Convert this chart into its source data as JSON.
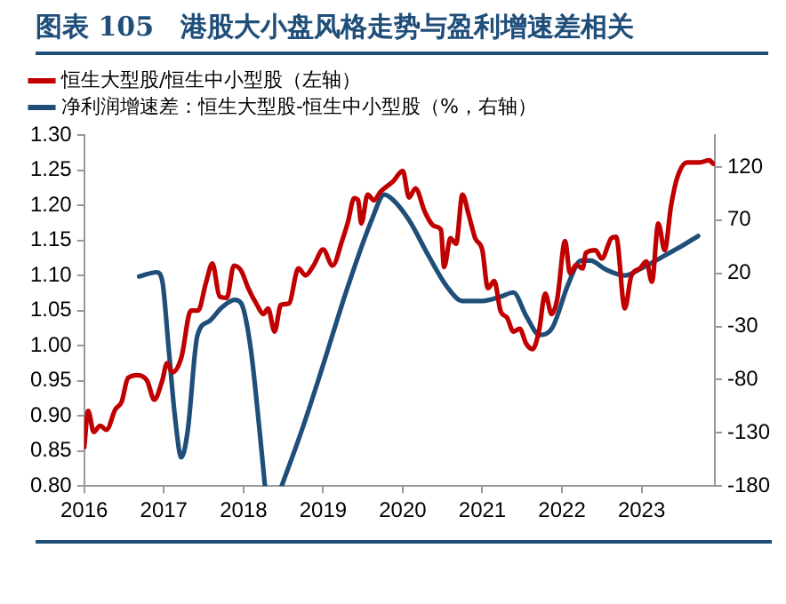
{
  "chart_data": {
    "type": "line",
    "title": "图表 105　港股大小盘风格走势与盈利增速差相关",
    "series": [
      {
        "name": "恒生大型股/恒生中小型股（左轴）",
        "color": "#c00000",
        "axis": "y",
        "x": [
          2016.0,
          2016.05,
          2016.12,
          2016.2,
          2016.28,
          2016.39,
          2016.47,
          2016.55,
          2016.67,
          2016.79,
          2016.88,
          2016.98,
          2017.04,
          2017.11,
          2017.22,
          2017.34,
          2017.43,
          2017.53,
          2017.61,
          2017.7,
          2017.79,
          2017.88,
          2017.97,
          2018.06,
          2018.17,
          2018.25,
          2018.31,
          2018.39,
          2018.47,
          2018.57,
          2018.69,
          2018.78,
          2018.88,
          2019.0,
          2019.12,
          2019.24,
          2019.31,
          2019.39,
          2019.44,
          2019.48,
          2019.56,
          2019.64,
          2019.72,
          2019.88,
          2020.0,
          2020.08,
          2020.16,
          2020.28,
          2020.4,
          2020.48,
          2020.52,
          2020.6,
          2020.67,
          2020.75,
          2020.83,
          2020.91,
          2021.0,
          2021.07,
          2021.15,
          2021.23,
          2021.31,
          2021.39,
          2021.47,
          2021.55,
          2021.63,
          2021.71,
          2021.79,
          2021.87,
          2021.94,
          2022.04,
          2022.1,
          2022.18,
          2022.26,
          2022.3,
          2022.42,
          2022.5,
          2022.62,
          2022.68,
          2022.79,
          2022.87,
          2022.98,
          2023.06,
          2023.13,
          2023.21,
          2023.29,
          2023.37,
          2023.45,
          2023.57,
          2023.73,
          2023.85,
          2023.9
        ],
        "values": [
          0.855,
          0.907,
          0.877,
          0.886,
          0.88,
          0.909,
          0.92,
          0.954,
          0.958,
          0.95,
          0.923,
          0.95,
          0.975,
          0.962,
          0.983,
          1.05,
          1.05,
          1.09,
          1.117,
          1.07,
          1.068,
          1.114,
          1.107,
          1.082,
          1.058,
          1.045,
          1.053,
          1.02,
          1.058,
          1.06,
          1.11,
          1.1,
          1.114,
          1.137,
          1.114,
          1.15,
          1.175,
          1.21,
          1.207,
          1.174,
          1.215,
          1.207,
          1.219,
          1.234,
          1.249,
          1.211,
          1.224,
          1.19,
          1.17,
          1.165,
          1.112,
          1.153,
          1.145,
          1.215,
          1.186,
          1.153,
          1.136,
          1.082,
          1.092,
          1.049,
          1.04,
          1.02,
          1.024,
          1.003,
          0.995,
          1.02,
          1.074,
          1.045,
          1.066,
          1.149,
          1.103,
          1.115,
          1.11,
          1.132,
          1.136,
          1.124,
          1.153,
          1.155,
          1.053,
          1.099,
          1.11,
          1.12,
          1.091,
          1.174,
          1.136,
          1.199,
          1.24,
          1.261,
          1.261,
          1.264,
          1.259
        ]
      },
      {
        "name": "净利润增速差：恒生大型股-恒生中小型股（%，右轴）",
        "color": "#1f4e79",
        "axis": "y2",
        "x": [
          2016.69,
          2016.91,
          2016.98,
          2017.06,
          2017.14,
          2017.22,
          2017.3,
          2017.42,
          2017.57,
          2017.73,
          2017.89,
          2017.97,
          2018.09,
          2018.2,
          2018.27,
          2018.38,
          2018.48,
          2018.74,
          2018.98,
          2019.3,
          2019.61,
          2019.77,
          2019.88,
          2020.08,
          2020.32,
          2020.56,
          2020.75,
          2021.0,
          2021.23,
          2021.39,
          2021.55,
          2021.72,
          2021.88,
          2022.08,
          2022.24,
          2022.36,
          2022.54,
          2022.79,
          2022.98,
          2023.25,
          2023.49,
          2023.71
        ],
        "values": [
          17,
          21,
          13,
          -50,
          -115,
          -153,
          -128,
          -39,
          -25,
          -12,
          -5,
          -8,
          -50,
          -126,
          -180,
          null,
          -180,
          -126,
          -71,
          5,
          70,
          94,
          89,
          70,
          37,
          7,
          -6,
          -6,
          -2,
          2,
          -20,
          -38,
          -31,
          10,
          32,
          32,
          24,
          18,
          24,
          35,
          45,
          55
        ]
      }
    ],
    "xlim": [
      2016,
      2023.92
    ],
    "xticks": [
      2016,
      2017,
      2018,
      2019,
      2020,
      2021,
      2022,
      2023
    ],
    "ylim": [
      0.8,
      1.3
    ],
    "yticks": [
      {
        "value": 0.8,
        "label": "0.80"
      },
      {
        "value": 0.85,
        "label": "0.85"
      },
      {
        "value": 0.9,
        "label": "0.90"
      },
      {
        "value": 0.95,
        "label": "0.95"
      },
      {
        "value": 1.0,
        "label": "1.00"
      },
      {
        "value": 1.05,
        "label": "1.05"
      },
      {
        "value": 1.1,
        "label": "1.10"
      },
      {
        "value": 1.15,
        "label": "1.15"
      },
      {
        "value": 1.2,
        "label": "1.20"
      },
      {
        "value": 1.25,
        "label": "1.25"
      },
      {
        "value": 1.3,
        "label": "1.30"
      }
    ],
    "y2lim": [
      -180,
      150
    ],
    "y2ticks": [
      -180,
      -130,
      -80,
      -30,
      20,
      70,
      120
    ],
    "grid": false,
    "legend": "top left",
    "marker": "none",
    "line_style": "solid"
  }
}
